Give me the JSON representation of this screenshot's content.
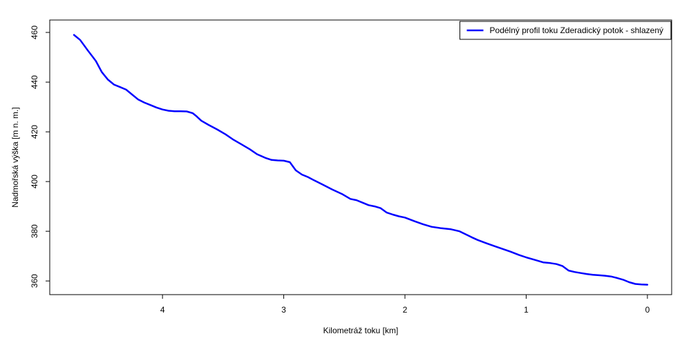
{
  "chart_data": {
    "type": "line",
    "title": "",
    "xlabel": "Kilometráž toku [km]",
    "ylabel": "Nadmořská výška [m n. m.]",
    "xlim": [
      4.93,
      -0.2
    ],
    "ylim": [
      354.5,
      465
    ],
    "x_reversed": true,
    "grid": false,
    "legend_position": "top-right",
    "x_ticks": [
      {
        "value": 4,
        "label": "4"
      },
      {
        "value": 3,
        "label": "3"
      },
      {
        "value": 2,
        "label": "2"
      },
      {
        "value": 1,
        "label": "1"
      },
      {
        "value": 0,
        "label": "0"
      }
    ],
    "y_ticks": [
      {
        "value": 360,
        "label": "360"
      },
      {
        "value": 380,
        "label": "380"
      },
      {
        "value": 400,
        "label": "400"
      },
      {
        "value": 420,
        "label": "420"
      },
      {
        "value": 440,
        "label": "440"
      },
      {
        "value": 460,
        "label": "460"
      }
    ],
    "series": [
      {
        "name": "Podélný profil toku Zderadický potok - shlazený",
        "color": "#0000ff",
        "x": [
          4.73,
          4.68,
          4.62,
          4.55,
          4.5,
          4.45,
          4.4,
          4.35,
          4.3,
          4.25,
          4.2,
          4.15,
          4.1,
          4.05,
          4.0,
          3.95,
          3.9,
          3.85,
          3.8,
          3.75,
          3.72,
          3.68,
          3.62,
          3.55,
          3.48,
          3.42,
          3.35,
          3.28,
          3.22,
          3.15,
          3.1,
          3.05,
          3.0,
          2.95,
          2.9,
          2.85,
          2.8,
          2.75,
          2.68,
          2.6,
          2.52,
          2.45,
          2.4,
          2.35,
          2.3,
          2.25,
          2.2,
          2.15,
          2.1,
          2.05,
          2.0,
          1.92,
          1.85,
          1.78,
          1.7,
          1.62,
          1.55,
          1.5,
          1.45,
          1.4,
          1.33,
          1.26,
          1.2,
          1.13,
          1.06,
          1.0,
          0.93,
          0.86,
          0.8,
          0.75,
          0.7,
          0.65,
          0.6,
          0.55,
          0.5,
          0.45,
          0.4,
          0.35,
          0.3,
          0.25,
          0.2,
          0.15,
          0.1,
          0.05,
          0.0
        ],
        "y": [
          459.0,
          457.0,
          453.0,
          448.5,
          444.0,
          441.0,
          439.0,
          438.0,
          437.0,
          435.0,
          433.0,
          431.8,
          430.8,
          429.8,
          429.0,
          428.5,
          428.3,
          428.3,
          428.2,
          427.5,
          426.3,
          424.5,
          422.8,
          421.0,
          419.0,
          417.0,
          415.0,
          413.0,
          411.0,
          409.5,
          408.7,
          408.5,
          408.4,
          407.8,
          404.5,
          402.8,
          401.8,
          400.5,
          398.8,
          396.8,
          395.0,
          393.0,
          392.5,
          391.5,
          390.5,
          390.0,
          389.3,
          387.5,
          386.7,
          386.0,
          385.5,
          384.0,
          382.8,
          381.8,
          381.2,
          380.8,
          380.0,
          378.8,
          377.6,
          376.5,
          375.2,
          374.0,
          373.0,
          371.8,
          370.5,
          369.5,
          368.5,
          367.5,
          367.2,
          366.8,
          366.0,
          364.2,
          363.6,
          363.2,
          362.8,
          362.5,
          362.3,
          362.1,
          361.8,
          361.2,
          360.5,
          359.5,
          358.8,
          358.6,
          358.5
        ]
      }
    ]
  }
}
